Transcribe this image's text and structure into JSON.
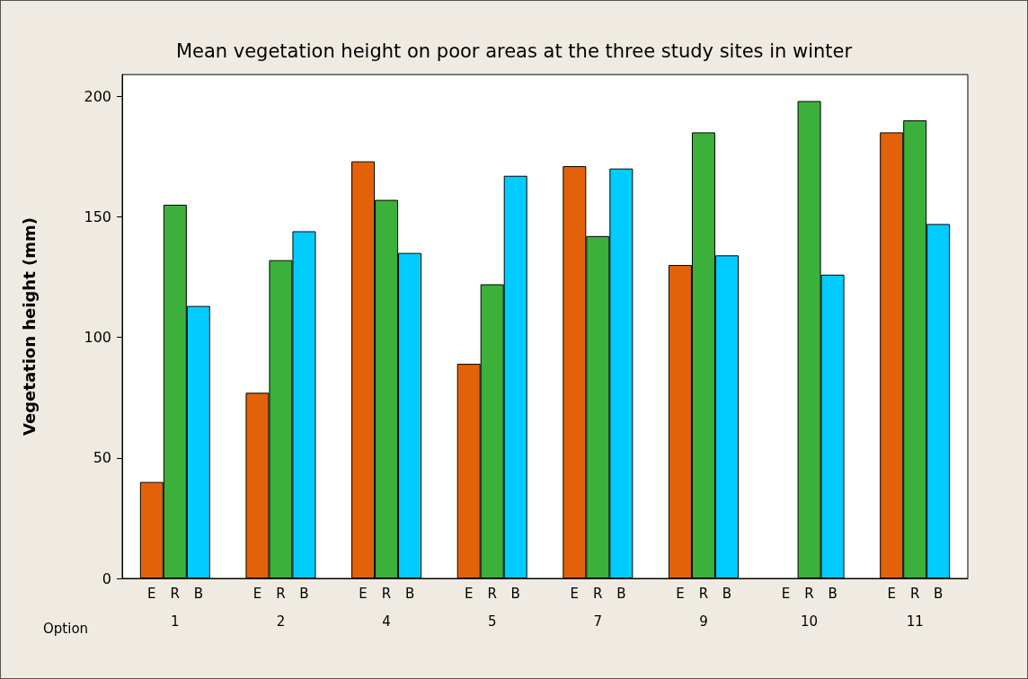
{
  "chart_data": {
    "type": "bar",
    "title": "Mean vegetation height on poor areas at the three study sites in winter",
    "ylabel": "Vegetation height (mm)",
    "xlabel": "Option",
    "categories": [
      "1",
      "2",
      "4",
      "5",
      "7",
      "9",
      "10",
      "11"
    ],
    "series": [
      {
        "name": "E",
        "color": "#e36209",
        "values": [
          40,
          77,
          173,
          89,
          171,
          130,
          null,
          185
        ]
      },
      {
        "name": "R",
        "color": "#3bb03b",
        "values": [
          155,
          132,
          157,
          122,
          142,
          185,
          198,
          190
        ]
      },
      {
        "name": "B",
        "color": "#00ccff",
        "values": [
          113,
          144,
          135,
          167,
          170,
          134,
          126,
          147
        ]
      }
    ],
    "ylim": [
      0,
      209
    ],
    "yticks": [
      0,
      50,
      100,
      150,
      200
    ],
    "grid": false,
    "legend": false
  }
}
